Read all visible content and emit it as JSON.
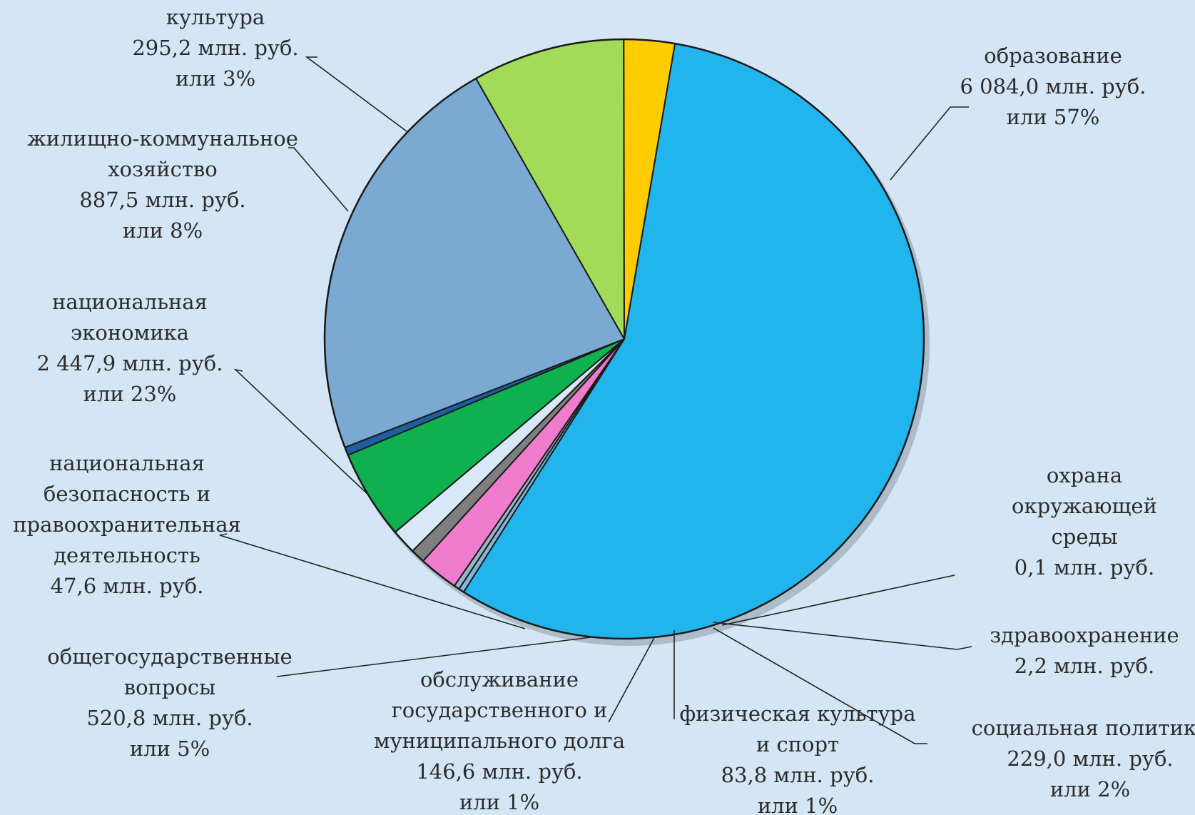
{
  "chart_data": {
    "type": "pie",
    "title": "",
    "slices": [
      {
        "name": "образование",
        "value": 6084.0,
        "value_text": "6 084,0 млн. руб.",
        "percent_text": "или 57%",
        "color": "#22b4ec"
      },
      {
        "name": "охрана окружающей среды",
        "value": 0.1,
        "value_text": "0,1 млн. руб.",
        "percent_text": "",
        "color": "#7fb8dc"
      },
      {
        "name": "здравоохранение",
        "value": 2.2,
        "value_text": "2,2 млн. руб.",
        "percent_text": "",
        "color": "#9ab3c8"
      },
      {
        "name": "социальная политика",
        "value": 229.0,
        "value_text": "229,0 млн. руб.",
        "percent_text": "или 2%",
        "color": "#ef7ccd"
      },
      {
        "name": "физическая культура и спорт",
        "value": 83.8,
        "value_text": "83,8 млн. руб.",
        "percent_text": "или 1%",
        "color": "#7f7f7f"
      },
      {
        "name": "обслуживание государственного и муниципального долга",
        "value": 146.6,
        "value_text": "146,6 млн. руб.",
        "percent_text": "или 1%",
        "color": "#d8e8f8"
      },
      {
        "name": "общегосударственные вопросы",
        "value": 520.8,
        "value_text": "520,8 млн. руб.",
        "percent_text": "или 5%",
        "color": "#0fb050"
      },
      {
        "name": "национальная безопасность и правоохранительная деятельность",
        "value": 47.6,
        "value_text": "47,6 млн. руб.",
        "percent_text": "",
        "color": "#1f5fa0"
      },
      {
        "name": "национальная экономика",
        "value": 2447.9,
        "value_text": "2 447,9 млн. руб.",
        "percent_text": "или 23%",
        "color": "#7aaad2"
      },
      {
        "name": "жилищно-коммунальное хозяйство",
        "value": 887.5,
        "value_text": "887,5 млн. руб.",
        "percent_text": "или 8%",
        "color": "#a3db58"
      },
      {
        "name": "культура",
        "value": 295.2,
        "value_text": "295,2 млн. руб.",
        "percent_text": "или 3%",
        "color": "#ffcc00"
      }
    ],
    "labels": [
      {
        "key": "obrazovanie",
        "lines": [
          "образование",
          "6 084,0 млн. руб.",
          "или 57%"
        ]
      },
      {
        "key": "ohrana",
        "lines": [
          "охрана",
          "окружающей",
          "среды",
          "0,1 млн. руб."
        ]
      },
      {
        "key": "zdrav",
        "lines": [
          "здравоохранение",
          "2,2 млн. руб."
        ]
      },
      {
        "key": "social",
        "lines": [
          "социальная политика",
          "229,0 млн. руб.",
          "или 2%"
        ]
      },
      {
        "key": "fizkult",
        "lines": [
          "физическая культура",
          "и спорт",
          "83,8 млн. руб.",
          "или 1%"
        ]
      },
      {
        "key": "dolg",
        "lines": [
          "обслуживание",
          "государственного и",
          "муниципального долга",
          "146,6 млн. руб.",
          "или 1%"
        ]
      },
      {
        "key": "obshegos",
        "lines": [
          "общегосударственные",
          "вопросы",
          "520,8 млн. руб.",
          "или 5%"
        ]
      },
      {
        "key": "bezop",
        "lines": [
          "национальная",
          "безопасность и",
          "правоохранительная",
          "деятельность",
          "47,6 млн. руб."
        ]
      },
      {
        "key": "ekonom",
        "lines": [
          "национальная",
          "экономика",
          "2 447,9 млн. руб.",
          "или 23%"
        ]
      },
      {
        "key": "zhkh",
        "lines": [
          "жилищно-коммунальное",
          "хозяйство",
          "887,5 млн. руб.",
          "или 8%"
        ]
      },
      {
        "key": "kultura",
        "lines": [
          "культура",
          "295,2 млн. руб.",
          "или 3%"
        ]
      }
    ]
  }
}
